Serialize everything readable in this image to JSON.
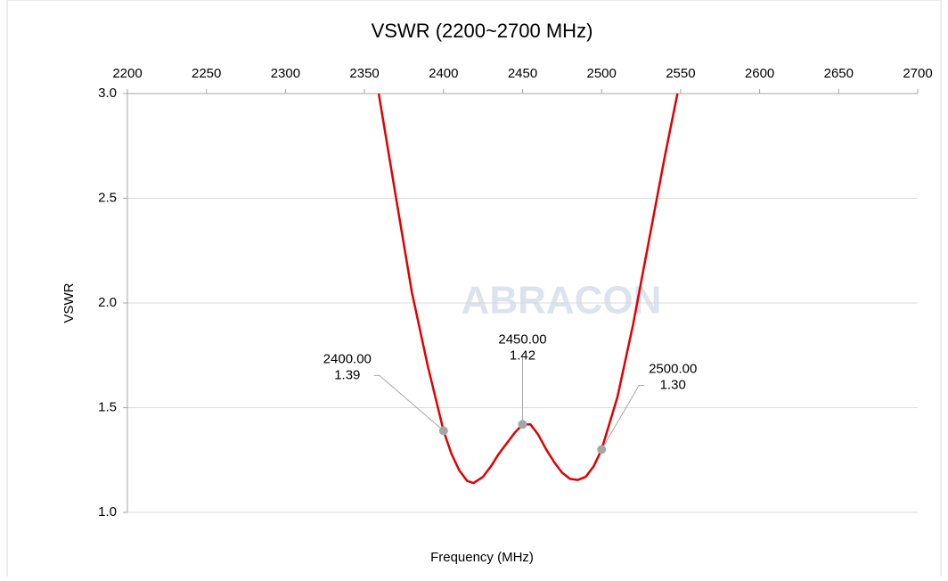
{
  "chart_data": {
    "type": "line",
    "title": "VSWR (2200~2700 MHz)",
    "x_label": "Frequency (MHz)",
    "y_label": "VSWR",
    "watermark": "ABRACON",
    "x": [
      2359,
      2370,
      2380,
      2390,
      2400,
      2405,
      2410,
      2415,
      2419,
      2425,
      2430,
      2435,
      2440,
      2445,
      2450,
      2455,
      2460,
      2465,
      2470,
      2475,
      2480,
      2485,
      2490,
      2495,
      2500,
      2510,
      2520,
      2530,
      2540,
      2548
    ],
    "series": [
      {
        "name": "VSWR",
        "color": "#e00000",
        "values": [
          3.0,
          2.5,
          2.05,
          1.7,
          1.39,
          1.28,
          1.2,
          1.15,
          1.14,
          1.17,
          1.22,
          1.28,
          1.33,
          1.38,
          1.42,
          1.42,
          1.37,
          1.3,
          1.24,
          1.19,
          1.16,
          1.155,
          1.17,
          1.22,
          1.3,
          1.55,
          1.9,
          2.3,
          2.7,
          3.0
        ]
      }
    ],
    "annotations": [
      {
        "x": 2400,
        "y": 1.39,
        "text": [
          "2400.00",
          "1.39"
        ]
      },
      {
        "x": 2450,
        "y": 1.42,
        "text": [
          "2450.00",
          "1.42"
        ]
      },
      {
        "x": 2500,
        "y": 1.3,
        "text": [
          "2500.00",
          "1.30"
        ]
      }
    ],
    "marker_color": "#a6a6a6",
    "xlim": [
      2200,
      2700
    ],
    "xticks": [
      2200,
      2250,
      2300,
      2350,
      2400,
      2450,
      2500,
      2550,
      2600,
      2650,
      2700
    ],
    "ylim": [
      1,
      3
    ],
    "yticks": [
      {
        "value": 1,
        "label": "1.0"
      },
      1.5,
      {
        "value": 2,
        "label": "2.0"
      },
      2.5,
      {
        "value": 3,
        "label": "3.0"
      }
    ],
    "grid": true,
    "x_axis_position": "top"
  }
}
